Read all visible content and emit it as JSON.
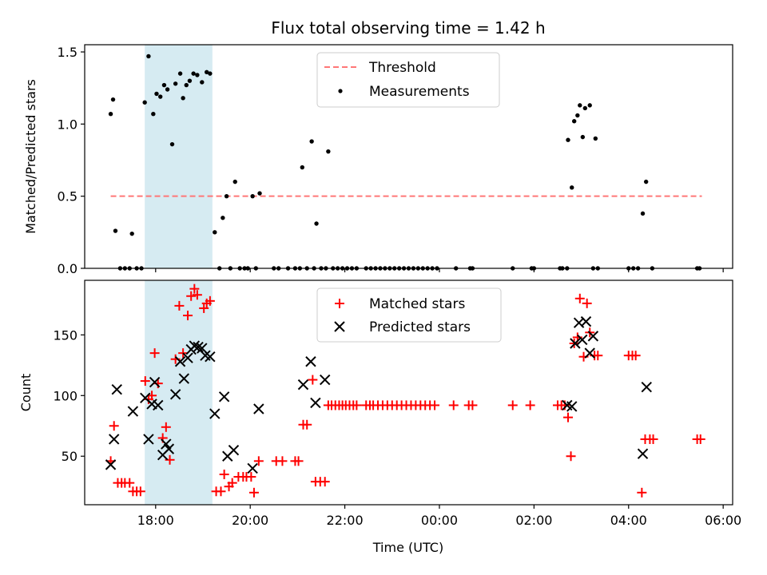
{
  "chart_data": [
    {
      "type": "scatter",
      "title": "Flux total observing time = 1.42 h",
      "xlabel": "",
      "ylabel": "Matched/Predicted stars",
      "xlim": [
        16.5,
        30.2
      ],
      "ylim": [
        0,
        1.55
      ],
      "yticks": [
        0.0,
        0.5,
        1.0,
        1.5
      ],
      "ytick_labels": [
        "0.0",
        "0.5",
        "1.0",
        "1.5"
      ],
      "xticks": [
        18,
        20,
        22,
        24,
        26,
        28,
        30
      ],
      "shaded_region": [
        17.77,
        19.2
      ],
      "legend": {
        "position": "upper-center",
        "entries": [
          {
            "label": "Threshold",
            "kind": "dashed-line",
            "color": "#ff7777"
          },
          {
            "label": "Measurements",
            "kind": "dot",
            "color": "#000000"
          }
        ]
      },
      "threshold": {
        "name": "Threshold",
        "value": 0.5,
        "x_range": [
          17.05,
          29.55
        ],
        "color": "#ff7777"
      },
      "series": [
        {
          "name": "Measurements",
          "color": "#000000",
          "points": [
            [
              17.05,
              1.07
            ],
            [
              17.1,
              1.17
            ],
            [
              17.15,
              0.26
            ],
            [
              17.25,
              0
            ],
            [
              17.35,
              0
            ],
            [
              17.45,
              0
            ],
            [
              17.5,
              0.24
            ],
            [
              17.6,
              0
            ],
            [
              17.7,
              0
            ],
            [
              17.77,
              1.15
            ],
            [
              17.85,
              1.47
            ],
            [
              17.95,
              1.07
            ],
            [
              18.02,
              1.21
            ],
            [
              18.1,
              1.19
            ],
            [
              18.18,
              1.27
            ],
            [
              18.25,
              1.24
            ],
            [
              18.35,
              0.86
            ],
            [
              18.42,
              1.28
            ],
            [
              18.52,
              1.35
            ],
            [
              18.58,
              1.18
            ],
            [
              18.65,
              1.27
            ],
            [
              18.72,
              1.3
            ],
            [
              18.8,
              1.35
            ],
            [
              18.88,
              1.34
            ],
            [
              18.98,
              1.29
            ],
            [
              19.08,
              1.36
            ],
            [
              19.15,
              1.35
            ],
            [
              19.25,
              0.25
            ],
            [
              19.35,
              0
            ],
            [
              19.42,
              0.35
            ],
            [
              19.5,
              0.5
            ],
            [
              19.58,
              0
            ],
            [
              19.68,
              0.6
            ],
            [
              19.78,
              0
            ],
            [
              19.88,
              0
            ],
            [
              19.95,
              0
            ],
            [
              20.05,
              0.5
            ],
            [
              20.12,
              0
            ],
            [
              20.2,
              0.52
            ],
            [
              20.5,
              0
            ],
            [
              20.6,
              0
            ],
            [
              20.8,
              0
            ],
            [
              20.95,
              0
            ],
            [
              21.05,
              0
            ],
            [
              21.1,
              0.7
            ],
            [
              21.2,
              0
            ],
            [
              21.3,
              0.88
            ],
            [
              21.35,
              0
            ],
            [
              21.4,
              0.31
            ],
            [
              21.5,
              0
            ],
            [
              21.6,
              0
            ],
            [
              21.65,
              0.81
            ],
            [
              21.75,
              0
            ],
            [
              21.85,
              0
            ],
            [
              21.95,
              0
            ],
            [
              22.05,
              0
            ],
            [
              22.15,
              0
            ],
            [
              22.25,
              0
            ],
            [
              22.45,
              0
            ],
            [
              22.55,
              0
            ],
            [
              22.65,
              0
            ],
            [
              22.75,
              0
            ],
            [
              22.85,
              0
            ],
            [
              22.95,
              0
            ],
            [
              23.05,
              0
            ],
            [
              23.15,
              0
            ],
            [
              23.25,
              0
            ],
            [
              23.35,
              0
            ],
            [
              23.45,
              0
            ],
            [
              23.55,
              0
            ],
            [
              23.65,
              0
            ],
            [
              23.75,
              0
            ],
            [
              23.85,
              0
            ],
            [
              23.95,
              0
            ],
            [
              24.35,
              0
            ],
            [
              24.65,
              0
            ],
            [
              24.7,
              0
            ],
            [
              25.55,
              0
            ],
            [
              25.95,
              0
            ],
            [
              26.0,
              0
            ],
            [
              26.55,
              0
            ],
            [
              26.6,
              0
            ],
            [
              26.7,
              0
            ],
            [
              26.72,
              0.89
            ],
            [
              26.8,
              0.56
            ],
            [
              26.85,
              1.02
            ],
            [
              26.92,
              1.06
            ],
            [
              26.97,
              1.13
            ],
            [
              27.03,
              0.91
            ],
            [
              27.08,
              1.11
            ],
            [
              27.18,
              1.13
            ],
            [
              27.25,
              0
            ],
            [
              27.3,
              0.9
            ],
            [
              27.35,
              0
            ],
            [
              28.0,
              0
            ],
            [
              28.1,
              0
            ],
            [
              28.2,
              0
            ],
            [
              28.3,
              0.38
            ],
            [
              28.37,
              0.6
            ],
            [
              28.5,
              0
            ],
            [
              29.45,
              0
            ],
            [
              29.5,
              0
            ]
          ]
        }
      ]
    },
    {
      "type": "scatter",
      "title": "",
      "xlabel": "Time (UTC)",
      "ylabel": "Count",
      "xlim": [
        16.5,
        30.2
      ],
      "ylim": [
        10,
        195
      ],
      "yticks": [
        50,
        100,
        150
      ],
      "ytick_labels": [
        "50",
        "100",
        "150"
      ],
      "xticks": [
        18,
        20,
        22,
        24,
        26,
        28,
        30
      ],
      "xtick_labels": [
        "18:00",
        "20:00",
        "22:00",
        "00:00",
        "02:00",
        "04:00",
        "06:00"
      ],
      "shaded_region": [
        17.77,
        19.2
      ],
      "legend": {
        "position": "upper-center",
        "entries": [
          {
            "label": "Matched stars",
            "kind": "plus",
            "color": "#ff0000"
          },
          {
            "label": "Predicted stars",
            "kind": "cross",
            "color": "#000000"
          }
        ]
      },
      "series": [
        {
          "name": "Matched stars",
          "color": "#ff0000",
          "points": [
            [
              17.05,
              46
            ],
            [
              17.12,
              75
            ],
            [
              17.2,
              28
            ],
            [
              17.28,
              28
            ],
            [
              17.35,
              28
            ],
            [
              17.45,
              28
            ],
            [
              17.52,
              21
            ],
            [
              17.6,
              21
            ],
            [
              17.68,
              21
            ],
            [
              17.78,
              112
            ],
            [
              17.85,
              97
            ],
            [
              17.92,
              100
            ],
            [
              17.98,
              135
            ],
            [
              18.05,
              110
            ],
            [
              18.15,
              65
            ],
            [
              18.22,
              74
            ],
            [
              18.3,
              47
            ],
            [
              18.42,
              130
            ],
            [
              18.5,
              174
            ],
            [
              18.58,
              135
            ],
            [
              18.68,
              166
            ],
            [
              18.75,
              182
            ],
            [
              18.82,
              188
            ],
            [
              18.88,
              183
            ],
            [
              19.02,
              172
            ],
            [
              19.08,
              176
            ],
            [
              19.15,
              178
            ],
            [
              19.28,
              21
            ],
            [
              19.38,
              21
            ],
            [
              19.45,
              35
            ],
            [
              19.55,
              25
            ],
            [
              19.62,
              28
            ],
            [
              19.75,
              33
            ],
            [
              19.85,
              33
            ],
            [
              19.92,
              33
            ],
            [
              20.02,
              33
            ],
            [
              20.08,
              20
            ],
            [
              20.18,
              46
            ],
            [
              20.55,
              46
            ],
            [
              20.68,
              46
            ],
            [
              20.95,
              46
            ],
            [
              21.02,
              46
            ],
            [
              21.12,
              76
            ],
            [
              21.2,
              76
            ],
            [
              21.32,
              113
            ],
            [
              21.38,
              29
            ],
            [
              21.48,
              29
            ],
            [
              21.58,
              29
            ],
            [
              21.65,
              92
            ],
            [
              21.72,
              92
            ],
            [
              21.8,
              92
            ],
            [
              21.88,
              92
            ],
            [
              21.95,
              92
            ],
            [
              22.02,
              92
            ],
            [
              22.1,
              92
            ],
            [
              22.18,
              92
            ],
            [
              22.25,
              92
            ],
            [
              22.45,
              92
            ],
            [
              22.53,
              92
            ],
            [
              22.6,
              92
            ],
            [
              22.7,
              92
            ],
            [
              22.8,
              92
            ],
            [
              22.9,
              92
            ],
            [
              23.0,
              92
            ],
            [
              23.1,
              92
            ],
            [
              23.2,
              92
            ],
            [
              23.3,
              92
            ],
            [
              23.4,
              92
            ],
            [
              23.5,
              92
            ],
            [
              23.6,
              92
            ],
            [
              23.7,
              92
            ],
            [
              23.8,
              92
            ],
            [
              23.9,
              92
            ],
            [
              24.3,
              92
            ],
            [
              24.62,
              92
            ],
            [
              24.7,
              92
            ],
            [
              25.55,
              92
            ],
            [
              25.92,
              92
            ],
            [
              26.5,
              92
            ],
            [
              26.58,
              92
            ],
            [
              26.65,
              92
            ],
            [
              26.72,
              82
            ],
            [
              26.78,
              50
            ],
            [
              26.85,
              143
            ],
            [
              26.92,
              148
            ],
            [
              26.97,
              180
            ],
            [
              27.05,
              132
            ],
            [
              27.12,
              176
            ],
            [
              27.18,
              152
            ],
            [
              27.28,
              133
            ],
            [
              27.35,
              133
            ],
            [
              28.0,
              133
            ],
            [
              28.08,
              133
            ],
            [
              28.15,
              133
            ],
            [
              28.28,
              20
            ],
            [
              28.35,
              64
            ],
            [
              28.45,
              64
            ],
            [
              28.52,
              64
            ],
            [
              29.45,
              64
            ],
            [
              29.52,
              64
            ]
          ]
        },
        {
          "name": "Predicted stars",
          "color": "#000000",
          "points": [
            [
              17.05,
              43
            ],
            [
              17.12,
              64
            ],
            [
              17.18,
              105
            ],
            [
              17.52,
              87
            ],
            [
              17.78,
              98
            ],
            [
              17.85,
              64
            ],
            [
              17.92,
              93
            ],
            [
              17.98,
              111
            ],
            [
              18.05,
              92
            ],
            [
              18.15,
              51
            ],
            [
              18.22,
              60
            ],
            [
              18.28,
              56
            ],
            [
              18.42,
              101
            ],
            [
              18.52,
              128
            ],
            [
              18.6,
              114
            ],
            [
              18.68,
              131
            ],
            [
              18.75,
              138
            ],
            [
              18.82,
              141
            ],
            [
              18.9,
              140
            ],
            [
              18.98,
              139
            ],
            [
              19.05,
              133
            ],
            [
              19.15,
              132
            ],
            [
              19.25,
              85
            ],
            [
              19.45,
              99
            ],
            [
              19.52,
              50
            ],
            [
              19.65,
              55
            ],
            [
              20.05,
              40
            ],
            [
              20.18,
              89
            ],
            [
              21.12,
              109
            ],
            [
              21.28,
              128
            ],
            [
              21.38,
              94
            ],
            [
              21.58,
              113
            ],
            [
              26.7,
              92
            ],
            [
              26.8,
              91
            ],
            [
              26.87,
              143
            ],
            [
              26.95,
              160
            ],
            [
              27.02,
              146
            ],
            [
              27.1,
              161
            ],
            [
              27.18,
              135
            ],
            [
              27.25,
              149
            ],
            [
              28.3,
              52
            ],
            [
              28.38,
              107
            ]
          ]
        }
      ]
    }
  ]
}
